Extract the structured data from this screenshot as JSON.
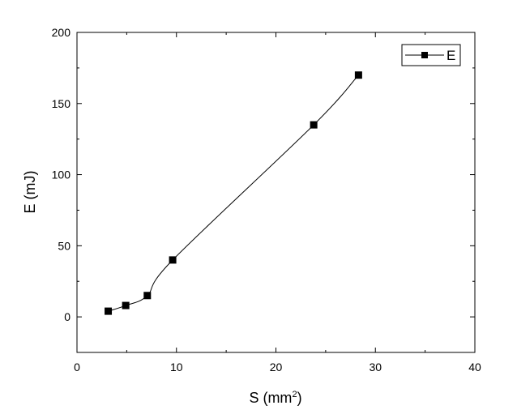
{
  "chart_data": {
    "type": "line",
    "xlabel_main": "S (mm",
    "xlabel_sup": "2",
    "xlabel_end": ")",
    "ylabel": "E (mJ)",
    "xlim": [
      0,
      40
    ],
    "ylim": [
      -25,
      200
    ],
    "x_ticks": [
      0,
      10,
      20,
      30,
      40
    ],
    "y_ticks": [
      0,
      50,
      100,
      150,
      200
    ],
    "x_tick_labels": [
      "0",
      "10",
      "20",
      "30",
      "40"
    ],
    "y_tick_labels": [
      "0",
      "50",
      "100",
      "150",
      "200"
    ],
    "grid": false,
    "legend_position": "top-right",
    "series": [
      {
        "name": "E",
        "color": "#000000",
        "marker": "square",
        "smooth": true,
        "x": [
          3.14,
          4.9,
          7.07,
          9.62,
          23.8,
          28.3
        ],
        "y": [
          4,
          8,
          15,
          40,
          135,
          170
        ]
      }
    ]
  }
}
